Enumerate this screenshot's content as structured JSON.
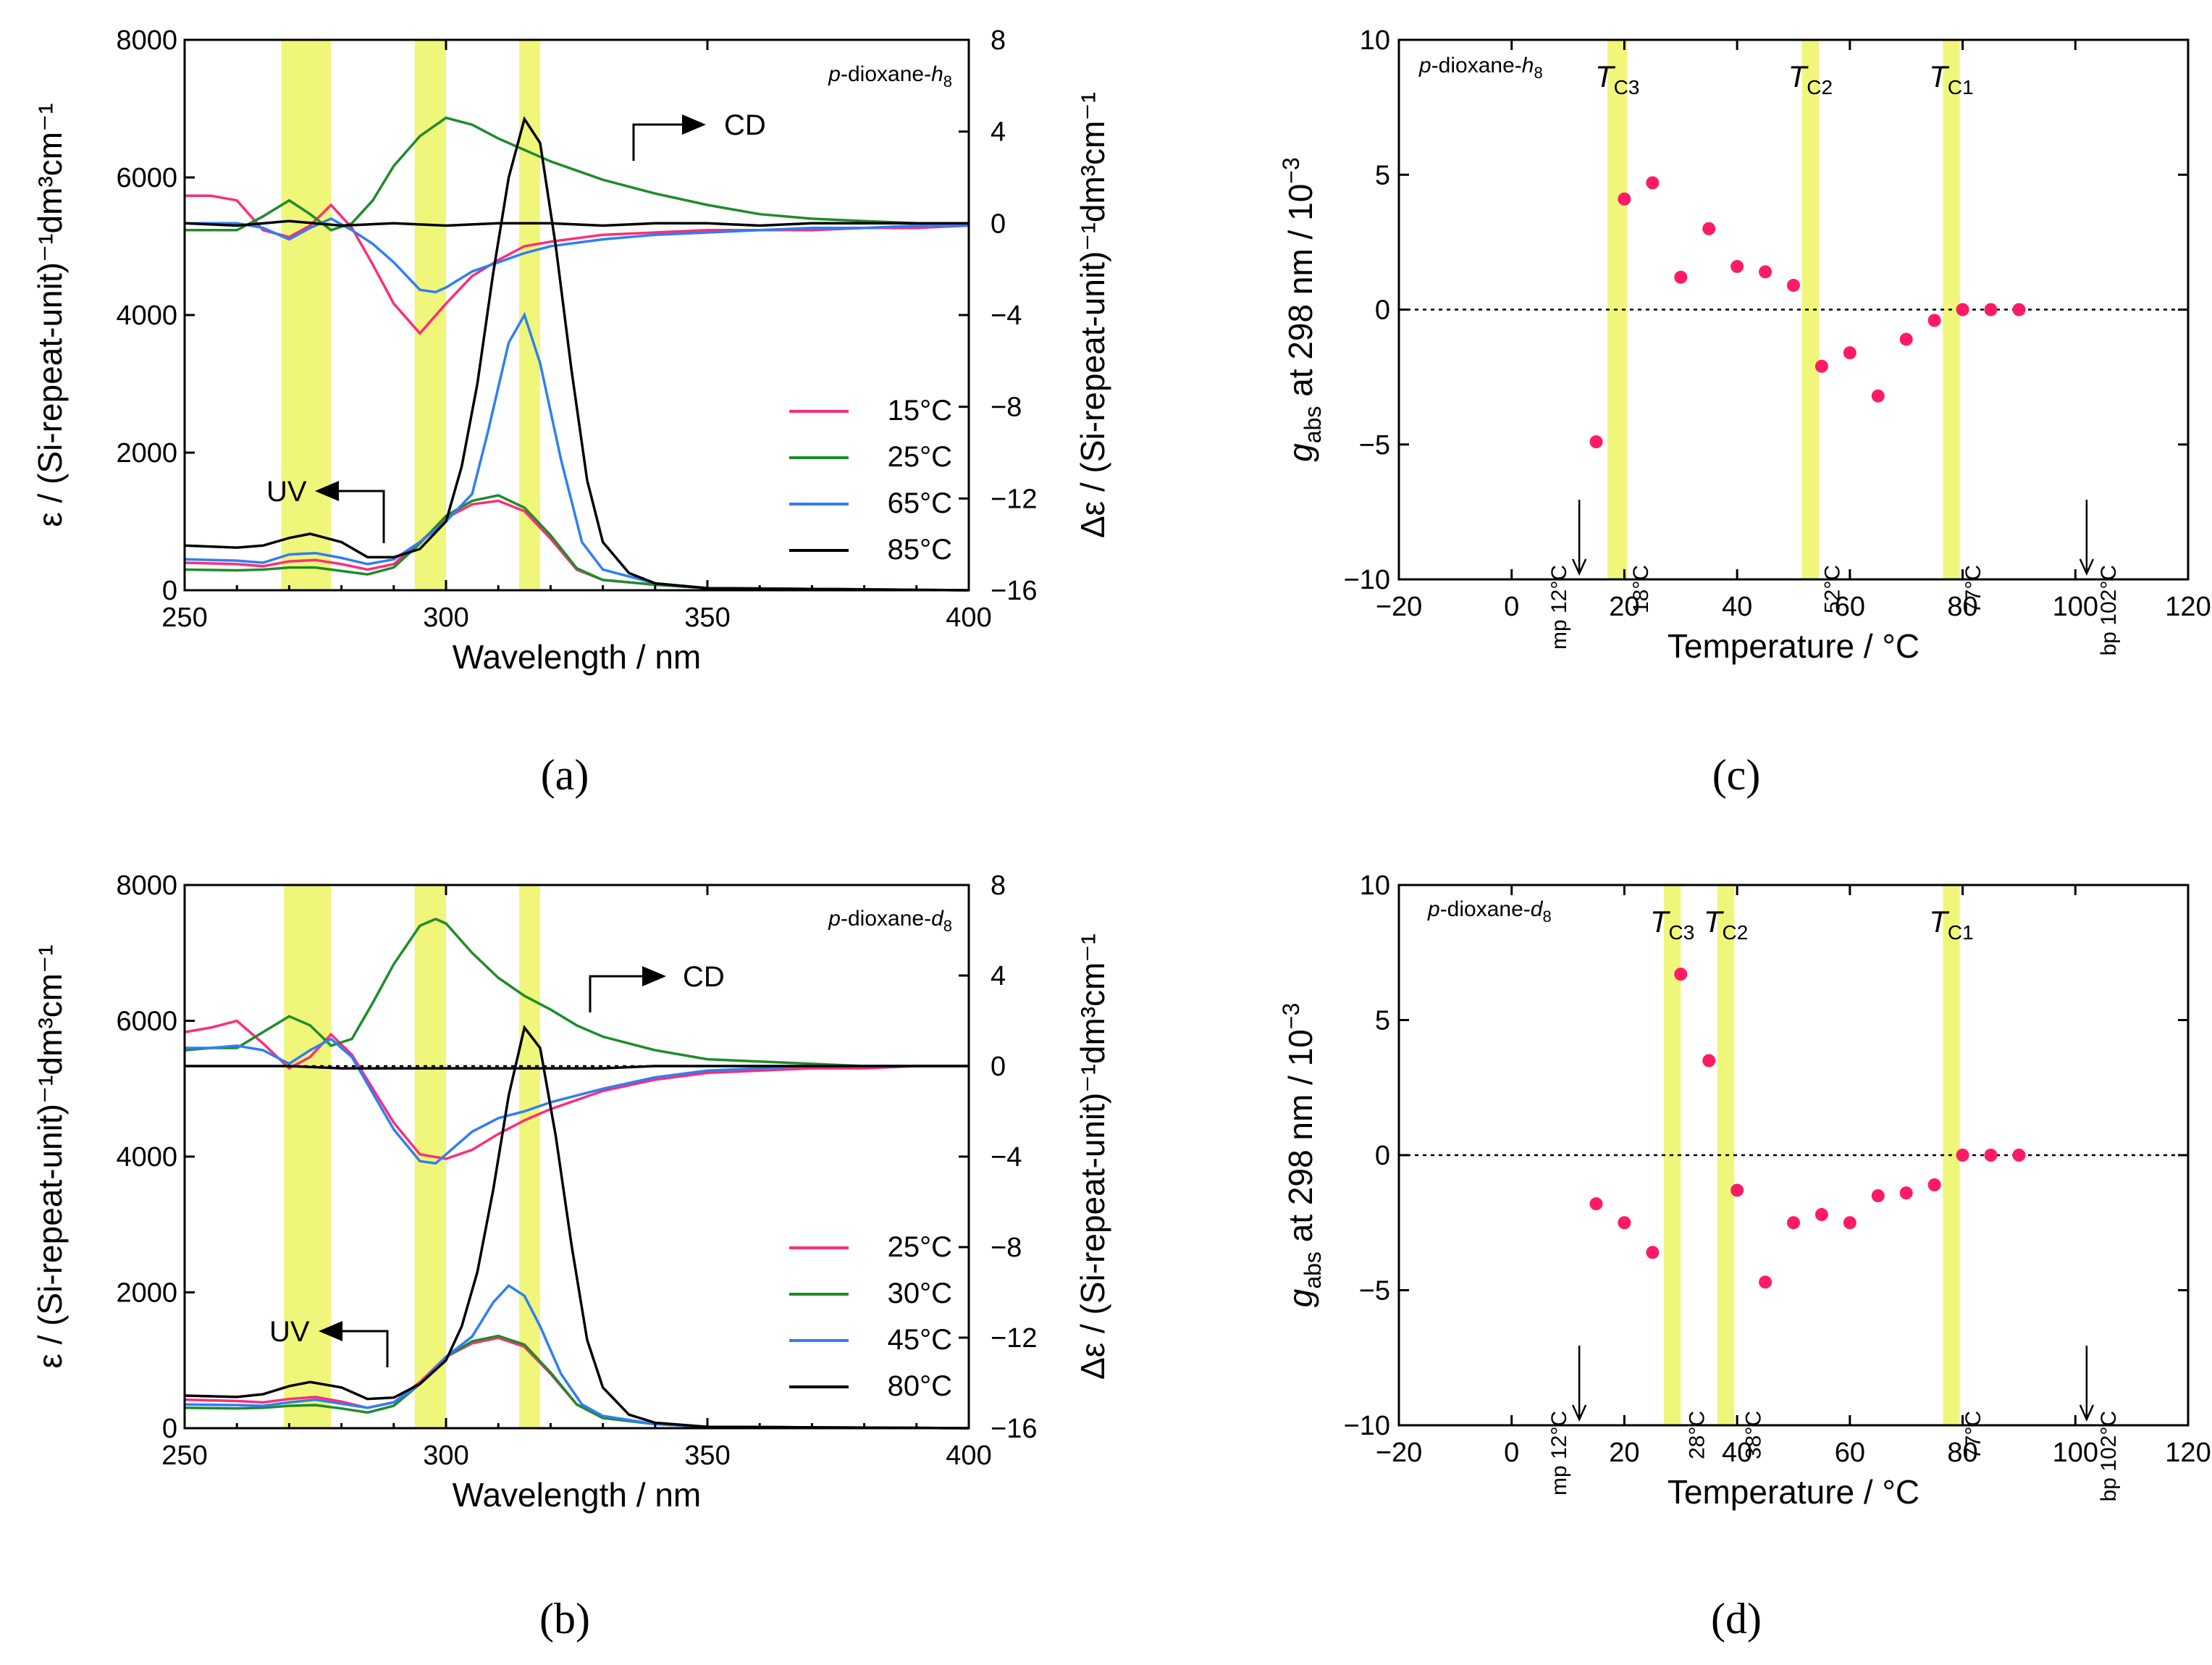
{
  "colors": {
    "c15": "#ff2d78",
    "c25": "#1e8c2a",
    "c65": "#2f7ef5",
    "c85": "#000000",
    "dot": "#ff1a66",
    "band": "#eef56a"
  },
  "chart_data": [
    {
      "id": "a",
      "type": "line",
      "panel_label": "(a)",
      "solvent_pre": "p",
      "solvent_mid": "-dioxane-",
      "solvent_it": "h",
      "solvent_sub": "8",
      "xlabel": "Wavelength / nm",
      "xlim": [
        250,
        400
      ],
      "xticks": [
        "250",
        "300",
        "350",
        "400"
      ],
      "ylabel_left": "ε / (Si-repeat-unit)⁻¹dm³cm⁻¹",
      "ylim_left": [
        0,
        8000
      ],
      "yticks_left": [
        "0",
        "2000",
        "4000",
        "6000",
        "8000"
      ],
      "ylabel_right": "Δε / (Si-repeat-unit)⁻¹dm³cm⁻¹",
      "ylim_right": [
        -16,
        8
      ],
      "yticks_right": [
        "−16",
        "−12",
        "−8",
        "−4",
        "0",
        "4",
        "8"
      ],
      "bands_nm": [
        [
          268.5,
          278
        ],
        [
          294,
          300
        ],
        [
          314,
          318
        ]
      ],
      "cd_label": "CD",
      "uv_label": "UV",
      "legend": [
        "15°C",
        "25°C",
        "65°C",
        "85°C"
      ],
      "cd_series": [
        {
          "name": "15°C",
          "x": [
            250,
            255,
            260,
            265,
            270,
            274,
            278,
            282,
            286,
            290,
            295,
            300,
            305,
            310,
            315,
            320,
            330,
            340,
            350,
            360,
            370,
            380,
            390,
            400
          ],
          "y": [
            1.2,
            1.2,
            1.0,
            -0.3,
            -0.6,
            -0.1,
            0.8,
            -0.2,
            -1.8,
            -3.5,
            -4.8,
            -3.5,
            -2.3,
            -1.6,
            -1.0,
            -0.8,
            -0.5,
            -0.4,
            -0.3,
            -0.3,
            -0.3,
            -0.2,
            -0.2,
            -0.1
          ]
        },
        {
          "name": "25°C",
          "x": [
            250,
            255,
            260,
            265,
            270,
            274,
            278,
            282,
            286,
            290,
            295,
            300,
            305,
            310,
            315,
            320,
            330,
            340,
            350,
            360,
            370,
            380,
            390,
            400
          ],
          "y": [
            -0.3,
            -0.3,
            -0.3,
            0.3,
            1.0,
            0.4,
            -0.3,
            0.0,
            1.0,
            2.5,
            3.8,
            4.6,
            4.3,
            3.7,
            3.2,
            2.7,
            1.9,
            1.3,
            0.8,
            0.4,
            0.2,
            0.1,
            0.0,
            0.0
          ]
        },
        {
          "name": "65°C",
          "x": [
            250,
            255,
            260,
            265,
            270,
            274,
            278,
            282,
            286,
            290,
            295,
            298,
            300,
            305,
            310,
            315,
            320,
            330,
            340,
            350,
            360,
            370,
            380,
            390,
            400
          ],
          "y": [
            0.0,
            0.0,
            0.0,
            -0.2,
            -0.7,
            -0.2,
            0.2,
            -0.3,
            -0.9,
            -1.7,
            -2.9,
            -3.0,
            -2.8,
            -2.1,
            -1.7,
            -1.3,
            -1.0,
            -0.7,
            -0.5,
            -0.4,
            -0.3,
            -0.2,
            -0.2,
            -0.1,
            -0.1
          ]
        },
        {
          "name": "85°C",
          "x": [
            250,
            260,
            270,
            280,
            290,
            300,
            310,
            320,
            330,
            340,
            350,
            360,
            370,
            380,
            390,
            400
          ],
          "y": [
            0.0,
            -0.1,
            0.1,
            -0.1,
            0.0,
            -0.1,
            0.0,
            0.0,
            -0.1,
            0.0,
            0.0,
            -0.1,
            0.0,
            0.0,
            0.0,
            0.0
          ]
        }
      ],
      "uv_series": [
        {
          "name": "15°C",
          "x": [
            250,
            260,
            265,
            270,
            275,
            280,
            285,
            290,
            295,
            300,
            305,
            310,
            315,
            320,
            325,
            330,
            340,
            350,
            400
          ],
          "y": [
            400,
            380,
            350,
            420,
            440,
            380,
            300,
            380,
            700,
            1050,
            1250,
            1300,
            1150,
            750,
            300,
            150,
            80,
            30,
            0
          ]
        },
        {
          "name": "25°C",
          "x": [
            250,
            260,
            265,
            270,
            275,
            280,
            285,
            290,
            295,
            300,
            305,
            310,
            315,
            320,
            325,
            330,
            340,
            350,
            400
          ],
          "y": [
            300,
            290,
            300,
            330,
            330,
            280,
            230,
            330,
            680,
            1080,
            1300,
            1380,
            1200,
            800,
            320,
            150,
            80,
            30,
            0
          ]
        },
        {
          "name": "65°C",
          "x": [
            250,
            260,
            265,
            270,
            275,
            280,
            285,
            290,
            295,
            300,
            305,
            308,
            312,
            315,
            318,
            322,
            326,
            330,
            340,
            350,
            400
          ],
          "y": [
            450,
            430,
            400,
            520,
            540,
            470,
            380,
            450,
            700,
            1000,
            1400,
            2300,
            3600,
            4000,
            3300,
            1900,
            700,
            300,
            100,
            30,
            0
          ]
        },
        {
          "name": "85°C",
          "x": [
            250,
            260,
            265,
            270,
            274,
            280,
            285,
            290,
            295,
            300,
            303,
            306,
            309,
            312,
            315,
            318,
            321,
            324,
            327,
            330,
            335,
            340,
            350,
            400
          ],
          "y": [
            650,
            620,
            650,
            760,
            820,
            700,
            480,
            480,
            600,
            1000,
            1800,
            3000,
            4600,
            6000,
            6850,
            6500,
            5000,
            3200,
            1600,
            700,
            250,
            100,
            30,
            0
          ]
        }
      ]
    },
    {
      "id": "b",
      "type": "line",
      "panel_label": "(b)",
      "solvent_pre": "p",
      "solvent_mid": "-dioxane-",
      "solvent_it": "d",
      "solvent_sub": "8",
      "xlabel": "Wavelength / nm",
      "xlim": [
        250,
        400
      ],
      "xticks": [
        "250",
        "300",
        "350",
        "400"
      ],
      "ylabel_left": "ε / (Si-repeat-unit)⁻¹dm³cm⁻¹",
      "ylim_left": [
        0,
        8000
      ],
      "yticks_left": [
        "0",
        "2000",
        "4000",
        "6000",
        "8000"
      ],
      "ylabel_right": "Δε / (Si-repeat-unit)⁻¹dm³cm⁻¹",
      "ylim_right": [
        -16,
        8
      ],
      "yticks_right": [
        "−16",
        "−12",
        "−8",
        "−4",
        "0",
        "4",
        "8"
      ],
      "bands_nm": [
        [
          269,
          278
        ],
        [
          294,
          300
        ],
        [
          314,
          318
        ]
      ],
      "cd_label": "CD",
      "uv_label": "UV",
      "legend": [
        "25°C",
        "30°C",
        "45°C",
        "80°C"
      ],
      "cd_series": [
        {
          "name": "25°C",
          "x": [
            250,
            255,
            260,
            265,
            270,
            274,
            278,
            282,
            286,
            290,
            295,
            300,
            305,
            310,
            315,
            320,
            325,
            330,
            340,
            350,
            360,
            370,
            380,
            390,
            400
          ],
          "y": [
            1.5,
            1.7,
            2.0,
            1.0,
            -0.1,
            0.4,
            1.4,
            0.5,
            -1.0,
            -2.5,
            -3.9,
            -4.1,
            -3.7,
            -3.0,
            -2.4,
            -1.9,
            -1.5,
            -1.1,
            -0.6,
            -0.3,
            -0.2,
            -0.1,
            -0.1,
            0.0,
            0.0
          ]
        },
        {
          "name": "30°C",
          "x": [
            250,
            255,
            260,
            265,
            270,
            274,
            278,
            282,
            286,
            290,
            295,
            298,
            300,
            305,
            310,
            315,
            320,
            325,
            330,
            340,
            350,
            360,
            370,
            380,
            390,
            400
          ],
          "y": [
            0.7,
            0.8,
            0.8,
            1.5,
            2.2,
            1.8,
            0.9,
            1.2,
            2.8,
            4.5,
            6.2,
            6.5,
            6.3,
            5.0,
            3.9,
            3.1,
            2.5,
            1.8,
            1.3,
            0.7,
            0.3,
            0.2,
            0.1,
            0.0,
            0.0,
            0.0
          ]
        },
        {
          "name": "45°C",
          "x": [
            250,
            255,
            260,
            265,
            270,
            274,
            278,
            282,
            286,
            290,
            295,
            298,
            300,
            305,
            310,
            315,
            320,
            330,
            340,
            350,
            360,
            370,
            380,
            390,
            400
          ],
          "y": [
            0.8,
            0.8,
            0.9,
            0.7,
            0.1,
            0.7,
            1.2,
            0.4,
            -1.2,
            -2.8,
            -4.2,
            -4.3,
            -3.9,
            -2.9,
            -2.3,
            -2.0,
            -1.6,
            -1.0,
            -0.5,
            -0.2,
            -0.1,
            0.0,
            0.0,
            0.0,
            0.0
          ]
        },
        {
          "name": "80°C",
          "x": [
            250,
            260,
            270,
            280,
            290,
            300,
            310,
            320,
            330,
            340,
            350,
            360,
            370,
            380,
            390,
            400
          ],
          "y": [
            0.0,
            0.0,
            0.0,
            -0.1,
            -0.1,
            -0.1,
            -0.1,
            -0.1,
            -0.1,
            0.0,
            0.0,
            0.0,
            0.0,
            0.0,
            0.0,
            0.0
          ]
        }
      ],
      "uv_series": [
        {
          "name": "25°C",
          "x": [
            250,
            260,
            265,
            270,
            275,
            280,
            285,
            290,
            295,
            300,
            305,
            310,
            315,
            320,
            325,
            330,
            340,
            350,
            400
          ],
          "y": [
            420,
            400,
            380,
            430,
            460,
            390,
            300,
            380,
            680,
            1050,
            1250,
            1330,
            1200,
            800,
            350,
            150,
            60,
            20,
            0
          ]
        },
        {
          "name": "30°C",
          "x": [
            250,
            260,
            265,
            270,
            275,
            280,
            285,
            290,
            295,
            300,
            305,
            310,
            315,
            320,
            325,
            330,
            340,
            350,
            400
          ],
          "y": [
            300,
            290,
            300,
            330,
            340,
            290,
            230,
            330,
            650,
            1050,
            1280,
            1360,
            1230,
            820,
            350,
            150,
            60,
            20,
            0
          ]
        },
        {
          "name": "45°C",
          "x": [
            250,
            260,
            265,
            270,
            275,
            280,
            285,
            290,
            295,
            300,
            305,
            309,
            312,
            315,
            318,
            322,
            326,
            330,
            340,
            350,
            400
          ],
          "y": [
            350,
            340,
            330,
            380,
            420,
            360,
            300,
            380,
            650,
            1050,
            1350,
            1850,
            2100,
            1950,
            1500,
            800,
            350,
            180,
            60,
            20,
            0
          ]
        },
        {
          "name": "80°C",
          "x": [
            250,
            260,
            265,
            270,
            274,
            280,
            285,
            290,
            295,
            300,
            303,
            306,
            309,
            312,
            315,
            318,
            321,
            324,
            327,
            330,
            335,
            340,
            350,
            400
          ],
          "y": [
            480,
            460,
            500,
            620,
            680,
            600,
            430,
            450,
            650,
            1000,
            1500,
            2300,
            3500,
            4900,
            5900,
            5600,
            4300,
            2700,
            1300,
            600,
            200,
            80,
            20,
            0
          ]
        }
      ]
    },
    {
      "id": "c",
      "type": "scatter",
      "panel_label": "(c)",
      "solvent_pre": "p",
      "solvent_mid": "-dioxane-",
      "solvent_it": "h",
      "solvent_sub": "8",
      "xlabel": "Temperature / °C",
      "xlim": [
        -20,
        120
      ],
      "xticks": [
        "−20",
        "0",
        "20",
        "40",
        "60",
        "80",
        "100",
        "120"
      ],
      "ylabel_g": "g",
      "ylabel_sub": "abs",
      "ylabel_rest": " at 298 nm / 10",
      "ylabel_sup": "−3",
      "ylim": [
        -10,
        10
      ],
      "yticks": [
        "−10",
        "−5",
        "0",
        "5",
        "10"
      ],
      "tc_bands": [
        {
          "x0": 17,
          "x1": 20.5,
          "label": "T",
          "sub": "C3"
        },
        {
          "x0": 51.5,
          "x1": 54.5,
          "label": "T",
          "sub": "C2"
        },
        {
          "x0": 76.5,
          "x1": 79.5,
          "label": "T",
          "sub": "C1"
        }
      ],
      "band_notes": [
        {
          "t": 18,
          "text": "18°C"
        },
        {
          "t": 52,
          "text": "52°C"
        },
        {
          "t": 77,
          "text": "77°C"
        }
      ],
      "mp_text": "mp 12°C",
      "mp_t": 12,
      "bp_text": "bp 102°C",
      "bp_t": 102,
      "x": [
        15,
        20,
        25,
        30,
        35,
        40,
        45,
        50,
        55,
        60,
        65,
        70,
        75,
        80,
        85,
        90
      ],
      "y": [
        -4.9,
        4.1,
        4.7,
        1.2,
        3.0,
        1.6,
        1.4,
        0.9,
        -2.1,
        -1.6,
        -3.2,
        -1.1,
        -0.4,
        0.0,
        0.0,
        0.0
      ]
    },
    {
      "id": "d",
      "type": "scatter",
      "panel_label": "(d)",
      "solvent_pre": "p",
      "solvent_mid": "-dioxane-",
      "solvent_it": "d",
      "solvent_sub": "8",
      "xlabel": "Temperature / °C",
      "xlim": [
        -20,
        120
      ],
      "xticks": [
        "−20",
        "0",
        "20",
        "40",
        "60",
        "80",
        "100",
        "120"
      ],
      "ylabel_g": "g",
      "ylabel_sub": "abs",
      "ylabel_rest": " at 298 nm / 10",
      "ylabel_sup": "−3",
      "ylim": [
        -10,
        10
      ],
      "yticks": [
        "−10",
        "−5",
        "0",
        "5",
        "10"
      ],
      "tc_bands": [
        {
          "x0": 27,
          "x1": 30,
          "label": "T",
          "sub": "C3"
        },
        {
          "x0": 36.5,
          "x1": 39.5,
          "label": "T",
          "sub": "C2"
        },
        {
          "x0": 76.5,
          "x1": 79.5,
          "label": "T",
          "sub": "C1"
        }
      ],
      "band_notes": [
        {
          "t": 28,
          "text": "28°C"
        },
        {
          "t": 38,
          "text": "38°C"
        },
        {
          "t": 77,
          "text": "77°C"
        }
      ],
      "mp_text": "mp 12°C",
      "mp_t": 12,
      "bp_text": "bp 102°C",
      "bp_t": 102,
      "x": [
        15,
        20,
        25,
        30,
        35,
        40,
        45,
        50,
        55,
        60,
        65,
        70,
        75,
        80,
        85,
        90
      ],
      "y": [
        -1.8,
        -2.5,
        -3.6,
        6.7,
        3.5,
        -1.3,
        -4.7,
        -2.5,
        -2.2,
        -2.5,
        -1.5,
        -1.4,
        -1.1,
        0.0,
        0.0,
        0.0
      ]
    }
  ]
}
